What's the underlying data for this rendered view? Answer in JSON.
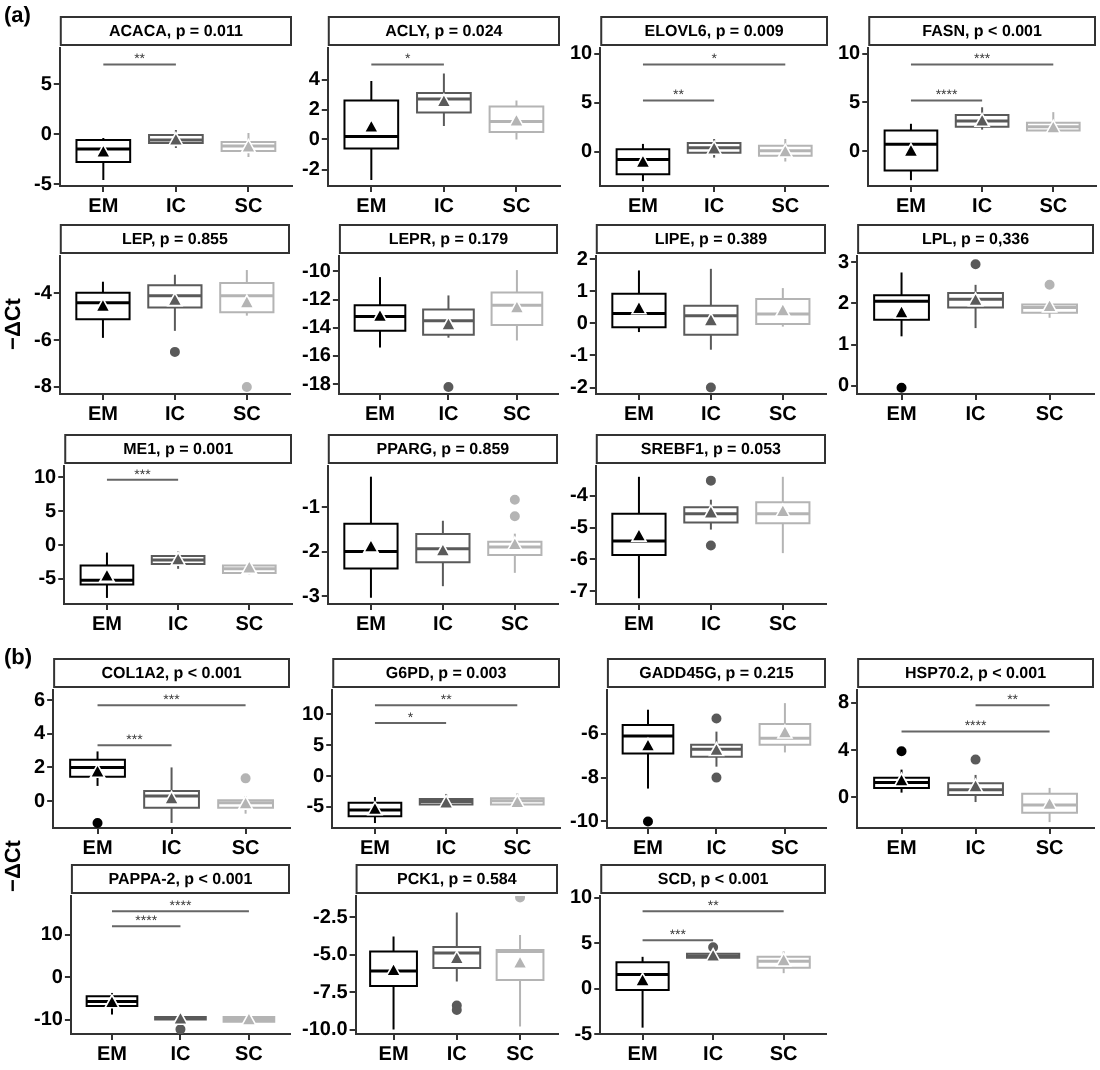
{
  "chart_data": [
    {
      "type": "box",
      "title": "ACACA, p = 0.011",
      "annotations": [
        "(a)",
        "**"
      ],
      "categories": [
        "EM",
        "IC",
        "SC"
      ],
      "colors": [
        "#000000",
        "#5a5a5a",
        "#b4b4b4"
      ],
      "ylim": [
        -5.2,
        8.6
      ],
      "yticks": [
        -5,
        0,
        5
      ],
      "boxes": [
        {
          "low": -4.6,
          "q1": -2.8,
          "median": -1.5,
          "q3": -0.6,
          "high": -0.4,
          "mean": -1.7
        },
        {
          "low": -1.4,
          "q1": -0.9,
          "median": -0.6,
          "q3": -0.1,
          "high": 0.4,
          "mean": -0.5
        },
        {
          "low": -2.3,
          "q1": -1.7,
          "median": -1.2,
          "q3": -0.8,
          "high": 0.1,
          "mean": -1.2
        }
      ]
    },
    {
      "type": "box",
      "title": "ACLY, p = 0.024",
      "annotations": [
        "*"
      ],
      "categories": [
        "EM",
        "IC",
        "SC"
      ],
      "colors": [
        "#000000",
        "#5a5a5a",
        "#b4b4b4"
      ],
      "ylim": [
        -3.1,
        6.1
      ],
      "yticks": [
        -2,
        0,
        2,
        4
      ],
      "boxes": [
        {
          "low": -2.7,
          "q1": -0.6,
          "median": 0.2,
          "q3": 2.6,
          "high": 3.9,
          "mean": 0.9
        },
        {
          "low": 0.9,
          "q1": 1.8,
          "median": 2.7,
          "q3": 3.1,
          "high": 4.4,
          "mean": 2.6
        },
        {
          "low": 0.0,
          "q1": 0.5,
          "median": 1.2,
          "q3": 2.2,
          "high": 2.6,
          "mean": 1.3
        }
      ]
    },
    {
      "type": "box",
      "title": "ELOVL6, p = 0.009",
      "annotations": [
        "**",
        "*"
      ],
      "categories": [
        "EM",
        "IC",
        "SC"
      ],
      "colors": [
        "#000000",
        "#5a5a5a",
        "#b4b4b4"
      ],
      "ylim": [
        -3.5,
        10.6
      ],
      "yticks": [
        0,
        5,
        10
      ],
      "boxes": [
        {
          "low": -3.0,
          "q1": -2.3,
          "median": -0.8,
          "q3": 0.25,
          "high": 0.8,
          "mean": -0.95
        },
        {
          "low": -0.6,
          "q1": -0.1,
          "median": 0.4,
          "q3": 0.9,
          "high": 1.3,
          "mean": 0.4
        },
        {
          "low": -1.0,
          "q1": -0.4,
          "median": 0.1,
          "q3": 0.6,
          "high": 1.3,
          "mean": 0.1
        }
      ]
    },
    {
      "type": "box",
      "title": "FASN, p < 0.001",
      "annotations": [
        "****",
        "***"
      ],
      "categories": [
        "EM",
        "IC",
        "SC"
      ],
      "colors": [
        "#000000",
        "#5a5a5a",
        "#b4b4b4"
      ],
      "ylim": [
        -3.6,
        10.6
      ],
      "yticks": [
        0,
        5,
        10
      ],
      "boxes": [
        {
          "low": -3.0,
          "q1": -2.0,
          "median": 0.7,
          "q3": 2.1,
          "high": 2.8,
          "mean": 0.1
        },
        {
          "low": 2.2,
          "q1": 2.5,
          "median": 3.1,
          "q3": 3.7,
          "high": 4.5,
          "mean": 3.2
        },
        {
          "low": 1.8,
          "q1": 2.1,
          "median": 2.5,
          "q3": 2.9,
          "high": 4.0,
          "mean": 2.5
        }
      ]
    },
    {
      "type": "box",
      "title": "LEP, p = 0.855",
      "ylabel": "−ΔCt",
      "categories": [
        "EM",
        "IC",
        "SC"
      ],
      "colors": [
        "#000000",
        "#5a5a5a",
        "#b4b4b4"
      ],
      "ylim": [
        -8.3,
        -2.4
      ],
      "yticks": [
        -4,
        -6,
        -8
      ],
      "boxes": [
        {
          "low": -5.9,
          "q1": -5.1,
          "median": -4.4,
          "q3": -3.97,
          "high": -3.5,
          "mean": -4.5
        },
        {
          "low": -5.6,
          "q1": -4.6,
          "median": -4.1,
          "q3": -3.65,
          "high": -3.2,
          "mean": -4.25,
          "outliers": [
            -6.5
          ]
        },
        {
          "low": -4.95,
          "q1": -4.8,
          "median": -4.1,
          "q3": -3.55,
          "high": -3.0,
          "mean": -4.35,
          "outliers": [
            -8.0
          ]
        }
      ]
    },
    {
      "type": "box",
      "title": "LEPR, p = 0.179",
      "categories": [
        "EM",
        "IC",
        "SC"
      ],
      "colors": [
        "#000000",
        "#5a5a5a",
        "#b4b4b4"
      ],
      "ylim": [
        -18.7,
        -8.9
      ],
      "yticks": [
        -10,
        -12,
        -14,
        -16,
        -18
      ],
      "boxes": [
        {
          "low": -15.4,
          "q1": -14.2,
          "median": -13.2,
          "q3": -12.4,
          "high": -10.4,
          "mean": -13.1
        },
        {
          "low": -14.7,
          "q1": -14.5,
          "median": -13.5,
          "q3": -12.7,
          "high": -11.7,
          "mean": -13.7,
          "outliers": [
            -18.2
          ]
        },
        {
          "low": -14.9,
          "q1": -13.8,
          "median": -12.4,
          "q3": -11.5,
          "high": -9.9,
          "mean": -12.5
        }
      ]
    },
    {
      "type": "box",
      "title": "LIPE, p = 0.389",
      "categories": [
        "EM",
        "IC",
        "SC"
      ],
      "colors": [
        "#000000",
        "#5a5a5a",
        "#b4b4b4"
      ],
      "ylim": [
        -2.2,
        2.1
      ],
      "yticks": [
        2,
        1,
        0,
        -1,
        -2
      ],
      "boxes": [
        {
          "low": -0.27,
          "q1": -0.12,
          "median": 0.31,
          "q3": 0.92,
          "high": 1.65,
          "mean": 0.5
        },
        {
          "low": -0.82,
          "q1": -0.35,
          "median": 0.24,
          "q3": 0.55,
          "high": 1.7,
          "mean": 0.12,
          "outliers": [
            -2.0
          ]
        },
        {
          "low": -0.1,
          "q1": -0.02,
          "median": 0.29,
          "q3": 0.76,
          "high": 1.1,
          "mean": 0.43
        }
      ]
    },
    {
      "type": "box",
      "title": "LPL, p = 0,336",
      "categories": [
        "EM",
        "IC",
        "SC"
      ],
      "colors": [
        "#000000",
        "#5a5a5a",
        "#b4b4b4"
      ],
      "ylim": [
        -0.2,
        3.15
      ],
      "yticks": [
        3,
        2,
        1,
        0
      ],
      "boxes": [
        {
          "low": 1.2,
          "q1": 1.6,
          "median": 2.05,
          "q3": 2.2,
          "high": 2.75,
          "mean": 1.8,
          "outliers": [
            -0.05
          ]
        },
        {
          "low": 1.4,
          "q1": 1.9,
          "median": 2.1,
          "q3": 2.25,
          "high": 2.45,
          "mean": 2.1,
          "outliers": [
            2.95
          ]
        },
        {
          "low": 1.65,
          "q1": 1.77,
          "median": 1.9,
          "q3": 1.97,
          "high": 2.05,
          "mean": 1.95,
          "outliers": [
            2.45
          ]
        }
      ]
    },
    {
      "type": "box",
      "title": "ME1, p = 0.001",
      "annotations": [
        "***"
      ],
      "categories": [
        "EM",
        "IC",
        "SC"
      ],
      "colors": [
        "#000000",
        "#5a5a5a",
        "#b4b4b4"
      ],
      "ylim": [
        -8.7,
        11.7
      ],
      "yticks": [
        10,
        5,
        0,
        -5
      ],
      "boxes": [
        {
          "low": -7.8,
          "q1": -5.8,
          "median": -5.2,
          "q3": -3.0,
          "high": -1.1,
          "mean": -4.4
        },
        {
          "low": -3.5,
          "q1": -2.8,
          "median": -2.2,
          "q3": -1.6,
          "high": -0.9,
          "mean": -2.0
        },
        {
          "low": -4.3,
          "q1": -4.1,
          "median": -3.5,
          "q3": -3.0,
          "high": -2.5,
          "mean": -3.2
        }
      ]
    },
    {
      "type": "box",
      "title": "PPARG, p = 0.859",
      "categories": [
        "EM",
        "IC",
        "SC"
      ],
      "colors": [
        "#000000",
        "#5a5a5a",
        "#b4b4b4"
      ],
      "ylim": [
        -3.17,
        -0.07
      ],
      "yticks": [
        -1,
        -2,
        -3
      ],
      "boxes": [
        {
          "low": -3.03,
          "q1": -2.37,
          "median": -1.99,
          "q3": -1.37,
          "high": -0.31,
          "mean": -1.86
        },
        {
          "low": -2.77,
          "q1": -2.23,
          "median": -1.93,
          "q3": -1.6,
          "high": -1.3,
          "mean": -1.95
        },
        {
          "low": -2.47,
          "q1": -2.07,
          "median": -1.89,
          "q3": -1.77,
          "high": -1.59,
          "mean": -1.81,
          "outliers": [
            -0.83,
            -1.2
          ]
        }
      ]
    },
    {
      "type": "box",
      "title": "SREBF1, p = 0.053",
      "categories": [
        "EM",
        "IC",
        "SC"
      ],
      "colors": [
        "#000000",
        "#5a5a5a",
        "#b4b4b4"
      ],
      "ylim": [
        -7.4,
        -3.06
      ],
      "yticks": [
        -4,
        -5,
        -6,
        -7
      ],
      "boxes": [
        {
          "low": -7.22,
          "q1": -5.86,
          "median": -5.42,
          "q3": -4.56,
          "high": -3.4,
          "mean": -5.22
        },
        {
          "low": -5.06,
          "q1": -4.84,
          "median": -4.56,
          "q3": -4.36,
          "high": -4.12,
          "mean": -4.5,
          "outliers": [
            -3.52,
            -5.56
          ]
        },
        {
          "low": -5.8,
          "q1": -4.86,
          "median": -4.56,
          "q3": -4.2,
          "high": -3.4,
          "mean": -4.46
        }
      ]
    },
    {
      "type": "box",
      "title": "COL1A2, p < 0.001",
      "ylabel": "−ΔCt",
      "annotations": [
        "(b)",
        "***",
        "***"
      ],
      "categories": [
        "EM",
        "IC",
        "SC"
      ],
      "colors": [
        "#000000",
        "#5a5a5a",
        "#b4b4b4"
      ],
      "ylim": [
        -1.6,
        6.6
      ],
      "yticks": [
        6,
        4,
        2,
        0
      ],
      "boxes": [
        {
          "low": 0.9,
          "q1": 1.45,
          "median": 2.0,
          "q3": 2.45,
          "high": 2.95,
          "mean": 1.8,
          "outliers": [
            -1.3
          ]
        },
        {
          "low": -1.3,
          "q1": -0.4,
          "median": 0.3,
          "q3": 0.6,
          "high": 2.0,
          "mean": 0.2
        },
        {
          "low": -0.75,
          "q1": -0.4,
          "median": -0.1,
          "q3": 0.05,
          "high": 0.3,
          "mean": -0.1,
          "outliers": [
            1.35
          ]
        }
      ]
    },
    {
      "type": "box",
      "title": "G6PD, p = 0.003",
      "annotations": [
        "*",
        "**"
      ],
      "categories": [
        "EM",
        "IC",
        "SC"
      ],
      "colors": [
        "#000000",
        "#5a5a5a",
        "#b4b4b4"
      ],
      "ylim": [
        -8.4,
        13.9
      ],
      "yticks": [
        10,
        5,
        0,
        -5
      ],
      "boxes": [
        {
          "low": -7.6,
          "q1": -6.5,
          "median": -5.5,
          "q3": -4.3,
          "high": -3.4,
          "mean": -5.2
        },
        {
          "low": -4.8,
          "q1": -4.6,
          "median": -4.1,
          "q3": -3.7,
          "high": -2.9,
          "mean": -4.2
        },
        {
          "low": -4.8,
          "q1": -4.6,
          "median": -4.0,
          "q3": -3.6,
          "high": -2.8,
          "mean": -4.1
        }
      ]
    },
    {
      "type": "box",
      "title": "GADD45G, p = 0.215",
      "categories": [
        "EM",
        "IC",
        "SC"
      ],
      "colors": [
        "#000000",
        "#5a5a5a",
        "#b4b4b4"
      ],
      "ylim": [
        -10.3,
        -4.0
      ],
      "yticks": [
        -6,
        -8,
        -10
      ],
      "boxes": [
        {
          "low": -8.5,
          "q1": -6.9,
          "median": -6.1,
          "q3": -5.6,
          "high": -4.9,
          "mean": -6.5,
          "outliers": [
            -10.0
          ]
        },
        {
          "low": -7.5,
          "q1": -7.05,
          "median": -6.7,
          "q3": -6.5,
          "high": -5.9,
          "mean": -6.7,
          "outliers": [
            -5.3,
            -8.0
          ]
        },
        {
          "low": -6.85,
          "q1": -6.5,
          "median": -6.2,
          "q3": -5.55,
          "high": -4.6,
          "mean": -5.9
        }
      ]
    },
    {
      "type": "box",
      "title": "HSP70.2, p < 0.001",
      "annotations": [
        "**",
        "****"
      ],
      "categories": [
        "EM",
        "IC",
        "SC"
      ],
      "colors": [
        "#000000",
        "#5a5a5a",
        "#b4b4b4"
      ],
      "ylim": [
        -2.6,
        9.1
      ],
      "yticks": [
        8,
        4,
        0
      ],
      "boxes": [
        {
          "low": 0.4,
          "q1": 0.8,
          "median": 1.25,
          "q3": 1.65,
          "high": 2.35,
          "mean": 1.5,
          "outliers": [
            3.9
          ]
        },
        {
          "low": -0.4,
          "q1": 0.2,
          "median": 0.65,
          "q3": 1.2,
          "high": 1.9,
          "mean": 1.0,
          "outliers": [
            3.2
          ]
        },
        {
          "low": -2.1,
          "q1": -1.3,
          "median": -0.65,
          "q3": 0.3,
          "high": 0.8,
          "mean": -0.5
        }
      ]
    },
    {
      "type": "box",
      "title": "PAPPA-2, p < 0.001",
      "annotations": [
        "****",
        "****"
      ],
      "categories": [
        "EM",
        "IC",
        "SC"
      ],
      "colors": [
        "#000000",
        "#5a5a5a",
        "#b4b4b4"
      ],
      "ylim": [
        -13.4,
        19.2
      ],
      "yticks": [
        10,
        0,
        -10
      ],
      "boxes": [
        {
          "low": -8.8,
          "q1": -6.8,
          "median": -5.7,
          "q3": -4.5,
          "high": -3.7,
          "mean": -5.7
        },
        {
          "low": -10.3,
          "q1": -10.0,
          "median": -9.7,
          "q3": -9.4,
          "high": -9.1,
          "mean": -9.6,
          "outliers": [
            -12.3
          ]
        },
        {
          "low": -11.2,
          "q1": -10.5,
          "median": -10.0,
          "q3": -9.4,
          "high": -8.6,
          "mean": -9.8
        }
      ]
    },
    {
      "type": "box",
      "title": "PCK1, p = 0.584",
      "categories": [
        "EM",
        "IC",
        "SC"
      ],
      "colors": [
        "#000000",
        "#5a5a5a",
        "#b4b4b4"
      ],
      "ylim": [
        -10.3,
        -1.1
      ],
      "yticks": [
        {
          "value": -2.5,
          "label": "-2.5"
        },
        {
          "value": -5,
          "label": "-5.0"
        },
        {
          "value": -7.5,
          "label": "-7.5"
        },
        {
          "value": -10,
          "label": "-10.0"
        }
      ],
      "boxes": [
        {
          "low": -10.0,
          "q1": -7.1,
          "median": -6.1,
          "q3": -4.8,
          "high": -3.8,
          "mean": -6.0
        },
        {
          "low": -6.8,
          "q1": -5.9,
          "median": -4.9,
          "q3": -4.5,
          "high": -2.2,
          "mean": -5.2,
          "outliers": [
            -8.4,
            -8.7
          ]
        },
        {
          "low": -9.8,
          "q1": -6.7,
          "median": -4.8,
          "q3": -4.7,
          "high": -3.7,
          "mean": -5.5,
          "outliers": [
            -1.2
          ]
        }
      ]
    },
    {
      "type": "box",
      "title": "SCD, p < 0.001",
      "annotations": [
        "***",
        "**"
      ],
      "categories": [
        "EM",
        "IC",
        "SC"
      ],
      "colors": [
        "#000000",
        "#5a5a5a",
        "#b4b4b4"
      ],
      "ylim": [
        -5.0,
        10.2
      ],
      "yticks": [
        10,
        5,
        0,
        -5
      ],
      "boxes": [
        {
          "low": -4.3,
          "q1": -0.15,
          "median": 1.55,
          "q3": 2.9,
          "high": 3.5,
          "mean": 1.0
        },
        {
          "low": 3.1,
          "q1": 3.4,
          "median": 3.6,
          "q3": 3.85,
          "high": 4.1,
          "mean": 3.7,
          "outliers": [
            4.55
          ]
        },
        {
          "low": 1.7,
          "q1": 2.3,
          "median": 3.0,
          "q3": 3.5,
          "high": 4.1,
          "mean": 3.2
        }
      ]
    }
  ]
}
